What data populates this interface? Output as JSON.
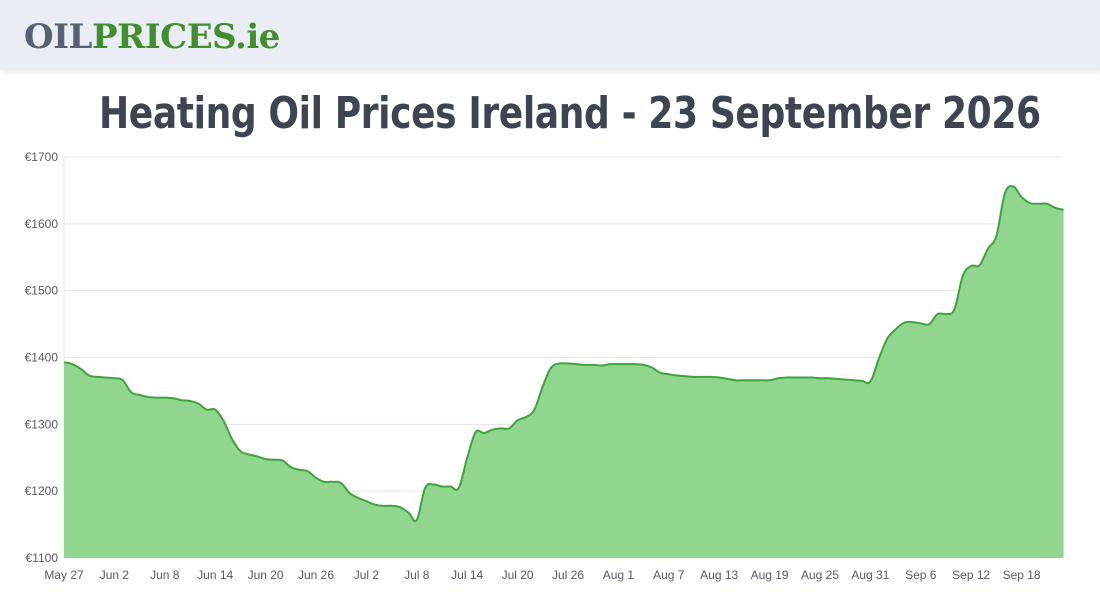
{
  "header": {
    "logo_part1": "OIL",
    "logo_part2": "PRICES",
    "logo_part3": ".ie",
    "colors": {
      "background": "#ebedf4",
      "logo_grey": "#566272",
      "logo_green": "#3f8f2e"
    }
  },
  "page_title": "Heating Oil Prices Ireland - 23 September 2026",
  "chart_data": {
    "type": "area",
    "title": "",
    "xlabel": "",
    "ylabel": "",
    "ylim": [
      1100,
      1700
    ],
    "y_ticks": [
      1100,
      1200,
      1300,
      1400,
      1500,
      1600,
      1700
    ],
    "y_tick_labels": [
      "€1100",
      "€1200",
      "€1300",
      "€1400",
      "€1500",
      "€1600",
      "€1700"
    ],
    "x_ticks": [
      {
        "label": "May 27",
        "day": 0
      },
      {
        "label": "Jun 2",
        "day": 6
      },
      {
        "label": "Jun 8",
        "day": 12
      },
      {
        "label": "Jun 14",
        "day": 18
      },
      {
        "label": "Jun 20",
        "day": 24
      },
      {
        "label": "Jun 26",
        "day": 30
      },
      {
        "label": "Jul 2",
        "day": 36
      },
      {
        "label": "Jul 8",
        "day": 42
      },
      {
        "label": "Jul 14",
        "day": 48
      },
      {
        "label": "Jul 20",
        "day": 54
      },
      {
        "label": "Jul 26",
        "day": 60
      },
      {
        "label": "Aug 1",
        "day": 66
      },
      {
        "label": "Aug 7",
        "day": 72
      },
      {
        "label": "Aug 13",
        "day": 78
      },
      {
        "label": "Aug 19",
        "day": 84
      },
      {
        "label": "Aug 25",
        "day": 90
      },
      {
        "label": "Aug 31",
        "day": 96
      },
      {
        "label": "Sep 6",
        "day": 102
      },
      {
        "label": "Sep 12",
        "day": 108
      },
      {
        "label": "Sep 18",
        "day": 114
      }
    ],
    "grid": true,
    "legend": "none",
    "line_color": "#3da33a",
    "fill_color": "#90d68f",
    "series": [
      {
        "values": [
          [
            0,
            1393
          ],
          [
            1,
            1390
          ],
          [
            2,
            1383
          ],
          [
            3,
            1373
          ],
          [
            4,
            1371
          ],
          [
            5,
            1370
          ],
          [
            6,
            1369
          ],
          [
            7,
            1366
          ],
          [
            8,
            1348
          ],
          [
            9,
            1344
          ],
          [
            10,
            1341
          ],
          [
            11,
            1340
          ],
          [
            12,
            1340
          ],
          [
            13,
            1339
          ],
          [
            14,
            1336
          ],
          [
            15,
            1335
          ],
          [
            16,
            1331
          ],
          [
            17,
            1322
          ],
          [
            18,
            1322
          ],
          [
            19,
            1305
          ],
          [
            20,
            1278
          ],
          [
            21,
            1260
          ],
          [
            22,
            1255
          ],
          [
            23,
            1252
          ],
          [
            24,
            1248
          ],
          [
            25,
            1247
          ],
          [
            26,
            1246
          ],
          [
            27,
            1236
          ],
          [
            28,
            1232
          ],
          [
            29,
            1230
          ],
          [
            30,
            1220
          ],
          [
            31,
            1214
          ],
          [
            32,
            1214
          ],
          [
            33,
            1212
          ],
          [
            34,
            1197
          ],
          [
            35,
            1190
          ],
          [
            36,
            1185
          ],
          [
            37,
            1180
          ],
          [
            38,
            1178
          ],
          [
            39,
            1178
          ],
          [
            40,
            1176
          ],
          [
            41,
            1168
          ],
          [
            42,
            1157
          ],
          [
            43,
            1205
          ],
          [
            44,
            1210
          ],
          [
            45,
            1207
          ],
          [
            46,
            1207
          ],
          [
            47,
            1205
          ],
          [
            48,
            1250
          ],
          [
            49,
            1288
          ],
          [
            50,
            1287
          ],
          [
            51,
            1292
          ],
          [
            52,
            1294
          ],
          [
            53,
            1294
          ],
          [
            54,
            1306
          ],
          [
            55,
            1311
          ],
          [
            56,
            1322
          ],
          [
            57,
            1357
          ],
          [
            58,
            1385
          ],
          [
            59,
            1391
          ],
          [
            60,
            1391
          ],
          [
            61,
            1390
          ],
          [
            62,
            1389
          ],
          [
            63,
            1389
          ],
          [
            64,
            1388
          ],
          [
            65,
            1390
          ],
          [
            66,
            1390
          ],
          [
            67,
            1390
          ],
          [
            68,
            1390
          ],
          [
            69,
            1389
          ],
          [
            70,
            1385
          ],
          [
            71,
            1377
          ],
          [
            72,
            1375
          ],
          [
            73,
            1373
          ],
          [
            74,
            1372
          ],
          [
            75,
            1371
          ],
          [
            76,
            1371
          ],
          [
            77,
            1371
          ],
          [
            78,
            1370
          ],
          [
            79,
            1368
          ],
          [
            80,
            1366
          ],
          [
            81,
            1366
          ],
          [
            82,
            1366
          ],
          [
            83,
            1366
          ],
          [
            84,
            1366
          ],
          [
            85,
            1369
          ],
          [
            86,
            1370
          ],
          [
            87,
            1370
          ],
          [
            88,
            1370
          ],
          [
            89,
            1370
          ],
          [
            90,
            1369
          ],
          [
            91,
            1369
          ],
          [
            92,
            1368
          ],
          [
            93,
            1367
          ],
          [
            94,
            1366
          ],
          [
            95,
            1365
          ],
          [
            96,
            1364
          ],
          [
            97,
            1398
          ],
          [
            98,
            1428
          ],
          [
            99,
            1442
          ],
          [
            100,
            1452
          ],
          [
            101,
            1453
          ],
          [
            102,
            1451
          ],
          [
            103,
            1450
          ],
          [
            104,
            1465
          ],
          [
            105,
            1465
          ],
          [
            106,
            1472
          ],
          [
            107,
            1522
          ],
          [
            108,
            1537
          ],
          [
            109,
            1538
          ],
          [
            110,
            1563
          ],
          [
            111,
            1582
          ],
          [
            112,
            1645
          ],
          [
            113,
            1656
          ],
          [
            114,
            1640
          ],
          [
            115,
            1631
          ],
          [
            116,
            1630
          ],
          [
            117,
            1630
          ],
          [
            118,
            1624
          ],
          [
            119,
            1621
          ]
        ]
      }
    ]
  }
}
